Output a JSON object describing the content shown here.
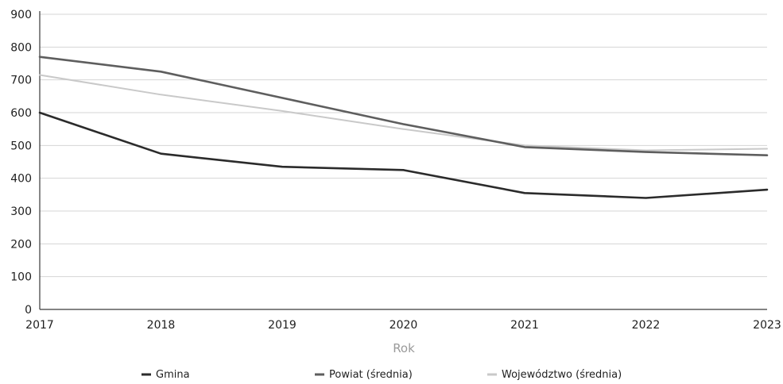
{
  "chart_data": {
    "type": "line",
    "title": "",
    "xlabel": "Rok",
    "ylabel": "",
    "x": [
      "2017",
      "2018",
      "2019",
      "2020",
      "2021",
      "2022",
      "2023"
    ],
    "ylim": [
      0,
      900
    ],
    "yticks": [
      "0",
      "100",
      "200",
      "300",
      "400",
      "500",
      "600",
      "700",
      "800",
      "900"
    ],
    "grid": true,
    "legend_position": "bottom",
    "series": [
      {
        "name": "Gmina",
        "values": [
          600,
          475,
          435,
          425,
          355,
          340,
          365
        ],
        "color": "#2b2b2b"
      },
      {
        "name": "Powiat (średnia)",
        "values": [
          770,
          725,
          645,
          565,
          495,
          480,
          470
        ],
        "color": "#5e5e5e"
      },
      {
        "name": "Województwo (średnia)",
        "values": [
          715,
          655,
          605,
          550,
          500,
          485,
          490
        ],
        "color": "#c9c9c9"
      }
    ]
  }
}
